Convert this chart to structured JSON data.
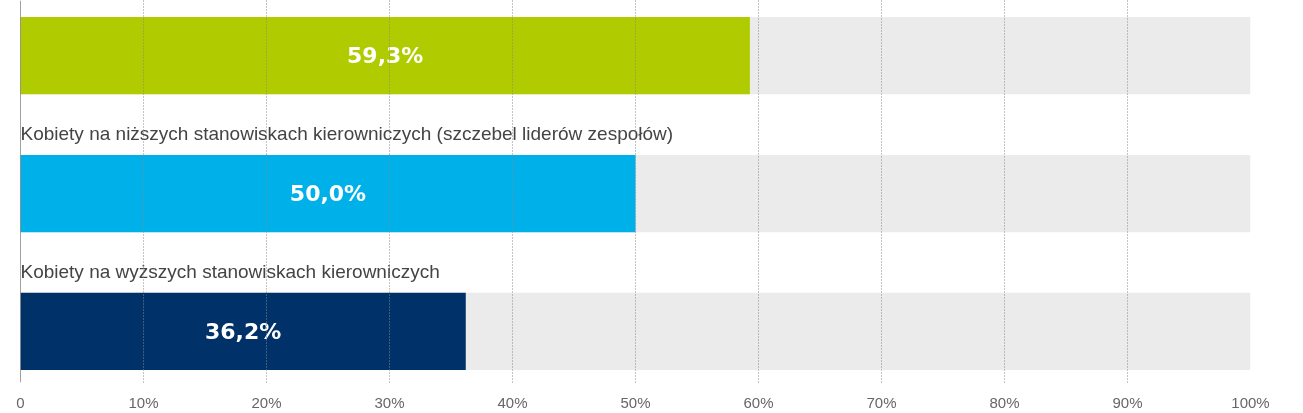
{
  "chart_data": {
    "type": "bar",
    "orientation": "horizontal",
    "categories": [
      null,
      "Kobiety na niższych stanowiskach kierowniczych (szczebel liderów zespołów)",
      "Kobiety na wyższych stanowiskach kierowniczych"
    ],
    "values": [
      59.3,
      50.0,
      36.2
    ],
    "colors": [
      "#b0cb00",
      "#00b0e8",
      "#003168"
    ],
    "value_labels": [
      "59,3%",
      "50,0%",
      "36,2%"
    ],
    "xlim": [
      0,
      100
    ],
    "xticks": [
      0,
      {
        "value": 10,
        "label": "10%"
      },
      {
        "value": 20,
        "label": "20%"
      },
      {
        "value": 30,
        "label": "30%"
      },
      {
        "value": 40,
        "label": "40%"
      },
      {
        "value": 50,
        "label": "50%"
      },
      {
        "value": 60,
        "label": "60%"
      },
      {
        "value": 70,
        "label": "70%"
      },
      {
        "value": 80,
        "label": "80%"
      },
      {
        "value": 90,
        "label": "90%"
      },
      {
        "value": 100,
        "label": "100%"
      }
    ],
    "grid": "x"
  }
}
